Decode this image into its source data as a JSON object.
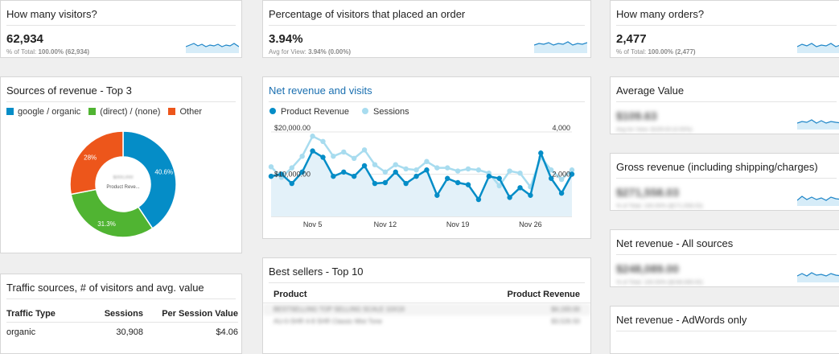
{
  "visitors": {
    "title": "How many visitors?",
    "value": "62,934",
    "sub_prefix": "% of Total: ",
    "sub_value": "100.00% (62,934)"
  },
  "conversion": {
    "title": "Percentage of visitors that placed an order",
    "value": "3.94%",
    "sub_prefix": "Avg for View: ",
    "sub_value": "3.94% (0.00%)"
  },
  "orders": {
    "title": "How many orders?",
    "value": "2,477",
    "sub_prefix": "% of Total: ",
    "sub_value": "100.00% (2,477)"
  },
  "sources": {
    "title": "Sources of revenue - Top 3",
    "legend": [
      {
        "label": "google / organic",
        "color": "#058dc7"
      },
      {
        "label": "(direct) / (none)",
        "color": "#50b432"
      },
      {
        "label": "Other",
        "color": "#ed561b"
      }
    ],
    "center_label": "Product Reve...",
    "center_value_obscured": "$000,000",
    "chart_data": {
      "type": "pie",
      "categories": [
        "google / organic",
        "(direct) / (none)",
        "Other"
      ],
      "values": [
        40.6,
        31.3,
        28
      ],
      "value_labels": [
        "40.6%",
        "31.3%",
        "28%"
      ]
    }
  },
  "revenue_visits": {
    "title": "Net revenue and visits",
    "legend": [
      {
        "label": "Product Revenue",
        "color": "#058dc7"
      },
      {
        "label": "Sessions",
        "color": "#a8dcef"
      }
    ],
    "y_left_labels": [
      "$20,000.00",
      "$10,000.00"
    ],
    "y_right_labels": [
      "4,000",
      "2,000"
    ],
    "x_labels": [
      "Nov 5",
      "Nov 12",
      "Nov 19",
      "Nov 26"
    ],
    "chart_data": {
      "type": "line",
      "x": [
        1,
        2,
        3,
        4,
        5,
        6,
        7,
        8,
        9,
        10,
        11,
        12,
        13,
        14,
        15,
        16,
        17,
        18,
        19,
        20,
        21,
        22,
        23,
        24,
        25,
        26,
        27,
        28,
        29,
        30
      ],
      "xlabel": "",
      "series": [
        {
          "name": "Product Revenue",
          "axis": "left",
          "values": [
            9500,
            10000,
            7800,
            10500,
            15500,
            14000,
            9500,
            10500,
            9500,
            12000,
            7800,
            8000,
            10500,
            7800,
            9500,
            11000,
            5000,
            9000,
            8000,
            7500,
            4000,
            9500,
            9000,
            4500,
            6800,
            5000,
            15000,
            9000,
            5500,
            10000
          ]
        },
        {
          "name": "Sessions",
          "axis": "right",
          "values": [
            2350,
            1850,
            2300,
            2850,
            3800,
            3550,
            2850,
            3050,
            2750,
            3150,
            2450,
            2100,
            2450,
            2250,
            2200,
            2600,
            2300,
            2300,
            2150,
            2250,
            2200,
            2050,
            1450,
            2150,
            2050,
            1400,
            2800,
            2200,
            1750,
            2200
          ]
        }
      ],
      "ylim_left": [
        0,
        20000
      ],
      "ylim_right": [
        0,
        4000
      ]
    }
  },
  "traffic": {
    "title": "Traffic sources, # of visitors and avg. value",
    "columns": [
      "Traffic Type",
      "Sessions",
      "Per Session Value"
    ],
    "rows": [
      [
        "organic",
        "30,908",
        "$4.06"
      ]
    ]
  },
  "bestsellers": {
    "title": "Best sellers - Top 10",
    "columns": [
      "Product",
      "Product Revenue"
    ],
    "rows_obscured": [
      [
        "BESTSELLING TOP SELLING SCALE 10X19",
        "$4,193.00"
      ],
      [
        "AU-0-SHR 4-8 SHR Classic Mist Tone",
        "$3,526.50"
      ]
    ]
  },
  "right_cards": [
    {
      "title": "Average Value",
      "value_obscured": "$109.63",
      "sub_obscured": "Avg for View: $109.63 (0.00%)"
    },
    {
      "title": "Gross revenue (including shipping/charges)",
      "value_obscured": "$271,558.03",
      "sub_obscured": "% of Total: 100.00% ($271,558.03)"
    },
    {
      "title": "Net revenue - All sources",
      "value_obscured": "$248,089.00",
      "sub_obscured": "% of Total: 100.00% ($248,089.00)"
    },
    {
      "title": "Net revenue - AdWords only"
    }
  ]
}
